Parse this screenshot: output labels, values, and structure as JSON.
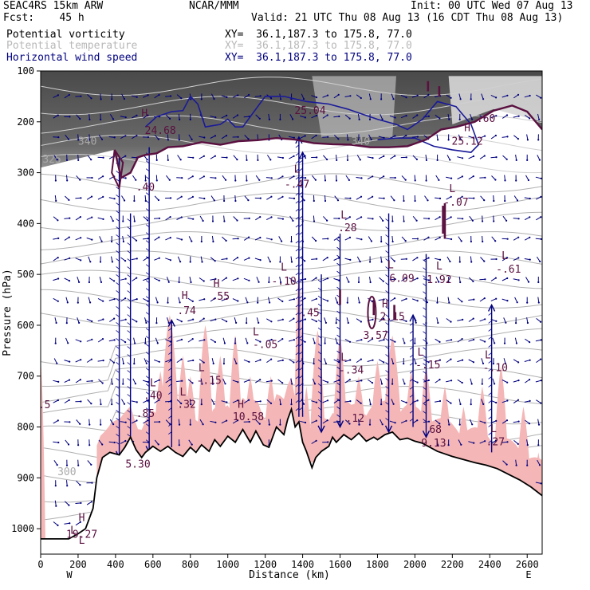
{
  "header": {
    "model": "SEAC4RS 15km ARW",
    "forecast": "Fcst:    45 h",
    "center": "NCAR/MMM",
    "init": "Init: 00 UTC Wed 07 Aug 13",
    "valid": "Valid: 21 UTC Thu 08 Aug 13 (16 CDT Thu 08 Aug 13)"
  },
  "legend": [
    {
      "name": "Potential vorticity",
      "xy": "XY=  36.1,187.3 to 175.8, 77.0",
      "color": "#000000"
    },
    {
      "name": "Potential temperature",
      "xy": "XY=  36.1,187.3 to 175.8, 77.0",
      "color": "#b8b8b8"
    },
    {
      "name": "Horizontal wind speed",
      "xy": "XY=  36.1,187.3 to 175.8, 77.0",
      "color": "#000080"
    }
  ],
  "colors": {
    "pv": "#5a1040",
    "theta": "#b0b0b0",
    "wind": "#00007f",
    "windContour": "#1a1a9a",
    "humidity": "#f4b6b6",
    "terrain": "#000000",
    "stratosphere": "#4a4a4a"
  },
  "chart_data": {
    "type": "cross-section",
    "xlabel": "Distance (km)",
    "ylabel": "Pressure (hPa)",
    "xlim": [
      0,
      2680
    ],
    "ylim": [
      100,
      1050
    ],
    "y_reversed": true,
    "x_ticks": [
      0,
      200,
      400,
      600,
      800,
      1000,
      1200,
      1400,
      1600,
      1800,
      2000,
      2200,
      2400,
      2600
    ],
    "y_ticks": [
      100,
      200,
      300,
      400,
      500,
      600,
      700,
      800,
      900,
      1000
    ],
    "x_end_labels": {
      "left": "W",
      "right": "E"
    },
    "terrain_profile": [
      [
        0,
        1020
      ],
      [
        150,
        1020
      ],
      [
        200,
        1010
      ],
      [
        240,
        1000
      ],
      [
        280,
        960
      ],
      [
        300,
        900
      ],
      [
        330,
        860
      ],
      [
        370,
        850
      ],
      [
        420,
        855
      ],
      [
        450,
        840
      ],
      [
        480,
        820
      ],
      [
        510,
        845
      ],
      [
        540,
        860
      ],
      [
        560,
        850
      ],
      [
        600,
        838
      ],
      [
        640,
        848
      ],
      [
        680,
        838
      ],
      [
        720,
        850
      ],
      [
        760,
        858
      ],
      [
        800,
        840
      ],
      [
        830,
        850
      ],
      [
        860,
        835
      ],
      [
        900,
        848
      ],
      [
        930,
        825
      ],
      [
        960,
        838
      ],
      [
        1000,
        818
      ],
      [
        1040,
        830
      ],
      [
        1080,
        805
      ],
      [
        1120,
        830
      ],
      [
        1150,
        808
      ],
      [
        1190,
        835
      ],
      [
        1220,
        840
      ],
      [
        1260,
        800
      ],
      [
        1300,
        815
      ],
      [
        1320,
        785
      ],
      [
        1340,
        765
      ],
      [
        1360,
        800
      ],
      [
        1380,
        790
      ],
      [
        1400,
        830
      ],
      [
        1420,
        848
      ],
      [
        1450,
        880
      ],
      [
        1470,
        860
      ],
      [
        1500,
        848
      ],
      [
        1540,
        838
      ],
      [
        1560,
        820
      ],
      [
        1580,
        830
      ],
      [
        1620,
        815
      ],
      [
        1660,
        825
      ],
      [
        1700,
        812
      ],
      [
        1740,
        828
      ],
      [
        1780,
        820
      ],
      [
        1800,
        825
      ],
      [
        1840,
        815
      ],
      [
        1880,
        810
      ],
      [
        1920,
        825
      ],
      [
        1960,
        822
      ],
      [
        2000,
        828
      ],
      [
        2040,
        832
      ],
      [
        2080,
        840
      ],
      [
        2120,
        848
      ],
      [
        2160,
        853
      ],
      [
        2200,
        858
      ],
      [
        2260,
        864
      ],
      [
        2320,
        870
      ],
      [
        2380,
        875
      ],
      [
        2440,
        882
      ],
      [
        2500,
        893
      ],
      [
        2560,
        904
      ],
      [
        2620,
        918
      ],
      [
        2680,
        935
      ]
    ],
    "tropopause_pv": [
      [
        395,
        255
      ],
      [
        430,
        310
      ],
      [
        480,
        300
      ],
      [
        520,
        270
      ],
      [
        560,
        265
      ],
      [
        620,
        262
      ],
      [
        680,
        250
      ],
      [
        760,
        248
      ],
      [
        860,
        240
      ],
      [
        960,
        245
      ],
      [
        1060,
        238
      ],
      [
        1160,
        236
      ],
      [
        1260,
        232
      ],
      [
        1360,
        235
      ],
      [
        1460,
        242
      ],
      [
        1560,
        244
      ],
      [
        1660,
        245
      ],
      [
        1760,
        250
      ],
      [
        1860,
        250
      ],
      [
        1960,
        248
      ],
      [
        2060,
        235
      ],
      [
        2140,
        215
      ],
      [
        2220,
        210
      ],
      [
        2320,
        200
      ],
      [
        2420,
        178
      ],
      [
        2520,
        168
      ],
      [
        2600,
        180
      ],
      [
        2680,
        215
      ]
    ],
    "pv_small_contours": [
      {
        "x": 1780,
        "p": [
          550,
          580
        ]
      },
      {
        "x": 1890,
        "p": [
          560,
          590
        ]
      },
      {
        "x": 2130,
        "p": [
          130,
          150
        ]
      },
      {
        "x": 2150,
        "p": [
          365,
          420
        ]
      },
      {
        "x": 2160,
        "p": [
          360,
          430
        ]
      },
      {
        "x": 2070,
        "p": [
          120,
          140
        ]
      },
      {
        "x": 1600,
        "p": [
          530,
          560
        ]
      }
    ],
    "wind_contour": [
      [
        560,
        210
      ],
      [
        620,
        190
      ],
      [
        700,
        180
      ],
      [
        760,
        178
      ],
      [
        800,
        150
      ],
      [
        840,
        165
      ],
      [
        880,
        210
      ],
      [
        960,
        205
      ],
      [
        1000,
        195
      ],
      [
        1040,
        210
      ],
      [
        1080,
        210
      ],
      [
        1200,
        150
      ],
      [
        1300,
        150
      ],
      [
        1420,
        160
      ],
      [
        1540,
        165
      ],
      [
        1640,
        175
      ],
      [
        1720,
        185
      ],
      [
        1800,
        195
      ],
      [
        1900,
        205
      ],
      [
        1960,
        215
      ],
      [
        2040,
        195
      ],
      [
        2120,
        160
      ],
      [
        2220,
        170
      ],
      [
        2300,
        205
      ],
      [
        2340,
        245
      ],
      [
        2300,
        260
      ],
      [
        2200,
        255
      ],
      [
        2100,
        248
      ],
      [
        2000,
        232
      ],
      [
        1900,
        232
      ],
      [
        1800,
        235
      ]
    ],
    "theta_levels": [
      300,
      325,
      340
    ],
    "theta_labels": [
      {
        "text": "300",
        "x": 140,
        "p": 895
      },
      {
        "text": "325",
        "x": 60,
        "p": 280
      },
      {
        "text": "340",
        "x": 250,
        "p": 245
      },
      {
        "text": "340",
        "x": 1710,
        "p": 245
      }
    ],
    "humidity_peaks": [
      [
        0,
        670,
        25
      ],
      [
        490,
        770,
        40
      ],
      [
        640,
        690,
        40
      ],
      [
        690,
        580,
        55
      ],
      [
        760,
        660,
        40
      ],
      [
        800,
        700,
        40
      ],
      [
        880,
        600,
        45
      ],
      [
        960,
        660,
        40
      ],
      [
        1040,
        620,
        40
      ],
      [
        1120,
        700,
        40
      ],
      [
        1230,
        700,
        40
      ],
      [
        1380,
        490,
        25
      ],
      [
        1420,
        720,
        30
      ],
      [
        1480,
        610,
        45
      ],
      [
        1600,
        620,
        40
      ],
      [
        1700,
        700,
        40
      ],
      [
        1800,
        670,
        40
      ],
      [
        1880,
        620,
        50
      ],
      [
        1980,
        690,
        40
      ],
      [
        2060,
        680,
        40
      ],
      [
        2160,
        720,
        40
      ],
      [
        2260,
        760,
        40
      ],
      [
        2360,
        720,
        40
      ],
      [
        2460,
        680,
        40
      ],
      [
        2580,
        760,
        40
      ],
      [
        2660,
        850,
        35
      ]
    ],
    "wind_jets": [
      {
        "x": 420,
        "top": 270,
        "bottom": 860,
        "dir": "down"
      },
      {
        "x": 480,
        "top": 380,
        "bottom": 840,
        "dir": "down"
      },
      {
        "x": 580,
        "top": 250,
        "bottom": 850,
        "dir": "down"
      },
      {
        "x": 700,
        "top": 590,
        "bottom": 840,
        "dir": "up"
      },
      {
        "x": 1380,
        "top": 230,
        "bottom": 780,
        "dir": "up"
      },
      {
        "x": 1400,
        "top": 260,
        "bottom": 780,
        "dir": "up"
      },
      {
        "x": 2410,
        "top": 560,
        "bottom": 850,
        "dir": "up"
      },
      {
        "x": 2060,
        "top": 460,
        "bottom": 820,
        "dir": "down"
      },
      {
        "x": 1990,
        "top": 580,
        "bottom": 800,
        "dir": "up"
      },
      {
        "x": 1860,
        "top": 380,
        "bottom": 810,
        "dir": "down"
      },
      {
        "x": 1500,
        "top": 500,
        "bottom": 810,
        "dir": "down"
      },
      {
        "x": 1600,
        "top": 420,
        "bottom": 800,
        "dir": "down"
      }
    ],
    "annotations": [
      {
        "text": "L",
        "x": 1370,
        "p": 300,
        "color": "#5a1040"
      },
      {
        "text": "-.47",
        "x": 1370,
        "p": 330,
        "color": "#5a1040"
      },
      {
        "text": "L",
        "x": 1620,
        "p": 390,
        "color": "#5a1040"
      },
      {
        "text": ".28",
        "x": 1640,
        "p": 415,
        "color": "#5a1040"
      },
      {
        "text": "H",
        "x": 555,
        "p": 190,
        "color": "#5a1040"
      },
      {
        "text": "24.68",
        "x": 640,
        "p": 224,
        "color": "#5a1040"
      },
      {
        "text": ".40",
        "x": 560,
        "p": 335,
        "color": "#5a1040"
      },
      {
        "text": "25.04",
        "x": 1440,
        "p": 185,
        "color": "#5a1040"
      },
      {
        "text": "H",
        "x": 2280,
        "p": 218,
        "color": "#5a1040"
      },
      {
        "text": "25.12",
        "x": 2280,
        "p": 245,
        "color": "#5a1040"
      },
      {
        "text": ".60",
        "x": 2380,
        "p": 200,
        "color": "#5a1040"
      },
      {
        "text": "L",
        "x": 2200,
        "p": 338,
        "color": "#5a1040"
      },
      {
        "text": "-.07",
        "x": 2220,
        "p": 365,
        "color": "#5a1040"
      },
      {
        "text": "L",
        "x": 1870,
        "p": 488,
        "color": "#5a1040"
      },
      {
        "text": "6.09",
        "x": 1930,
        "p": 515,
        "color": "#5a1040"
      },
      {
        "text": "L",
        "x": 1300,
        "p": 493,
        "color": "#5a1040"
      },
      {
        "text": "-.10",
        "x": 1300,
        "p": 520,
        "color": "#5a1040"
      },
      {
        "text": "L",
        "x": 2130,
        "p": 490,
        "color": "#5a1040"
      },
      {
        "text": "1.92",
        "x": 2130,
        "p": 517,
        "color": "#5a1040"
      },
      {
        "text": "L",
        "x": 2480,
        "p": 470,
        "color": "#5a1040"
      },
      {
        "text": "-.61",
        "x": 2500,
        "p": 497,
        "color": "#5a1040"
      },
      {
        "text": "H",
        "x": 1840,
        "p": 565,
        "color": "#5a1040"
      },
      {
        "text": "2.15",
        "x": 1880,
        "p": 590,
        "color": "#5a1040"
      },
      {
        "text": "3.57",
        "x": 1790,
        "p": 627,
        "color": "#5a1040"
      },
      {
        "text": "H",
        "x": 940,
        "p": 525,
        "color": "#5a1040"
      },
      {
        "text": ".55",
        "x": 960,
        "p": 550,
        "color": "#5a1040"
      },
      {
        "text": "H",
        "x": 770,
        "p": 548,
        "color": "#5a1040"
      },
      {
        "text": ".74",
        "x": 780,
        "p": 578,
        "color": "#5a1040"
      },
      {
        "text": ".45",
        "x": 1440,
        "p": 582,
        "color": "#5a1040"
      },
      {
        "text": "L",
        "x": 1150,
        "p": 620,
        "color": "#5a1040"
      },
      {
        "text": "-.05",
        "x": 1200,
        "p": 645,
        "color": "#5a1040"
      },
      {
        "text": "L",
        "x": 1620,
        "p": 670,
        "color": "#5a1040"
      },
      {
        "text": "-.34",
        "x": 1660,
        "p": 695,
        "color": "#5a1040"
      },
      {
        "text": "L",
        "x": 2030,
        "p": 660,
        "color": "#5a1040"
      },
      {
        "text": "-.15",
        "x": 2070,
        "p": 685,
        "color": "#5a1040"
      },
      {
        "text": "L",
        "x": 2390,
        "p": 665,
        "color": "#5a1040"
      },
      {
        "text": "-.10",
        "x": 2430,
        "p": 690,
        "color": "#5a1040"
      },
      {
        "text": "L",
        "x": 860,
        "p": 690,
        "color": "#5a1040"
      },
      {
        "text": "-.15",
        "x": 900,
        "p": 715,
        "color": "#5a1040"
      },
      {
        "text": "L",
        "x": 600,
        "p": 720,
        "color": "#5a1040"
      },
      {
        "text": ".40",
        "x": 600,
        "p": 745,
        "color": "#5a1040"
      },
      {
        "text": "L",
        "x": 760,
        "p": 738,
        "color": "#5a1040"
      },
      {
        "text": ".32",
        "x": 780,
        "p": 762,
        "color": "#5a1040"
      },
      {
        "text": ".85",
        "x": 560,
        "p": 780,
        "color": "#5a1040"
      },
      {
        "text": "H",
        "x": 1070,
        "p": 762,
        "color": "#5a1040"
      },
      {
        "text": "10.58",
        "x": 1110,
        "p": 787,
        "color": "#5a1040"
      },
      {
        "text": "L",
        "x": 2420,
        "p": 810,
        "color": "#5a1040"
      },
      {
        "text": ".27",
        "x": 2430,
        "p": 836,
        "color": "#5a1040"
      },
      {
        "text": "68",
        "x": 2110,
        "p": 812,
        "color": "#5a1040"
      },
      {
        "text": "9.13",
        "x": 2100,
        "p": 838,
        "color": "#5a1040"
      },
      {
        "text": "5.30",
        "x": 520,
        "p": 880,
        "color": "#5a1040"
      },
      {
        "text": "H",
        "x": 220,
        "p": 985,
        "color": "#5a1040"
      },
      {
        "text": "L",
        "x": 175,
        "p": 1010,
        "color": "#5a1040"
      },
      {
        "text": "19.27",
        "x": 220,
        "p": 1018,
        "color": "#5a1040"
      },
      {
        "text": "L",
        "x": 220,
        "p": 1030,
        "color": "#5a1040"
      },
      {
        "text": ".5",
        "x": 20,
        "p": 763,
        "color": "#5a1040"
      },
      {
        "text": ".12",
        "x": 1680,
        "p": 790,
        "color": "#5a1040"
      }
    ]
  }
}
